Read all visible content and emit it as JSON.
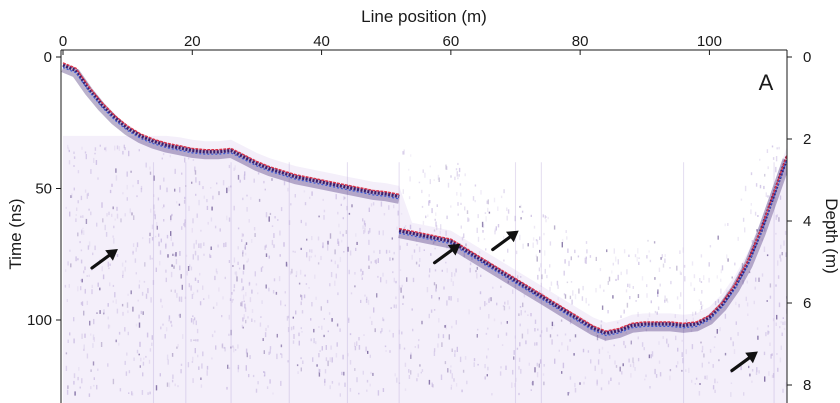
{
  "chart_data": {
    "type": "heatmap",
    "panel_label": "A",
    "xlabel": "Line position (m)",
    "ylabel_left": "Time (ns)",
    "ylabel_right": "Depth (m)",
    "xlim": [
      0,
      112
    ],
    "ylim_time": [
      0,
      128
    ],
    "ylim_depth": [
      0,
      8.4
    ],
    "x_ticks": [
      0,
      20,
      40,
      60,
      80,
      100
    ],
    "y_ticks_time": [
      0,
      50,
      100
    ],
    "y_ticks_depth": [
      0,
      2,
      4,
      6,
      8
    ],
    "colors": {
      "reflector_dark": "#3a1f6e",
      "reflector_red": "#d9344a",
      "reflector_blue": "#3b5bd6",
      "noise": "#b8a6d8",
      "arrow": "#111111"
    },
    "reflectors": [
      {
        "name": "upper",
        "x": [
          0,
          2,
          4,
          6,
          8,
          10,
          12,
          14,
          16,
          18,
          20,
          22,
          24,
          26,
          28,
          30,
          32,
          34,
          36,
          38,
          40,
          42,
          44,
          46,
          48,
          50,
          52
        ],
        "time": [
          3,
          5,
          12,
          18,
          23,
          27,
          30,
          32,
          33.5,
          34.5,
          35.5,
          36,
          36,
          35.5,
          38,
          40.5,
          42.5,
          44,
          45.5,
          46.5,
          47.5,
          48.5,
          49.5,
          50.5,
          51.5,
          52,
          53
        ]
      },
      {
        "name": "lower",
        "x": [
          52,
          54,
          56,
          58,
          60,
          62,
          64,
          66,
          68,
          70,
          72,
          74,
          76,
          78,
          80,
          82,
          84,
          86,
          88,
          90,
          92,
          94,
          96,
          98,
          100,
          102,
          104,
          106,
          108,
          110,
          112
        ],
        "time": [
          66,
          67,
          68,
          69,
          70,
          73,
          76,
          79,
          82,
          85,
          88,
          91,
          94,
          97,
          100,
          103,
          105,
          104,
          102,
          101.5,
          101.5,
          101.5,
          102,
          101.5,
          99,
          94,
          87,
          78,
          66,
          52,
          38
        ]
      }
    ],
    "arrows": [
      {
        "x": 8.5,
        "time": 73
      },
      {
        "x": 61.5,
        "time": 71
      },
      {
        "x": 70.5,
        "time": 66
      },
      {
        "x": 107.5,
        "time": 112
      }
    ]
  }
}
